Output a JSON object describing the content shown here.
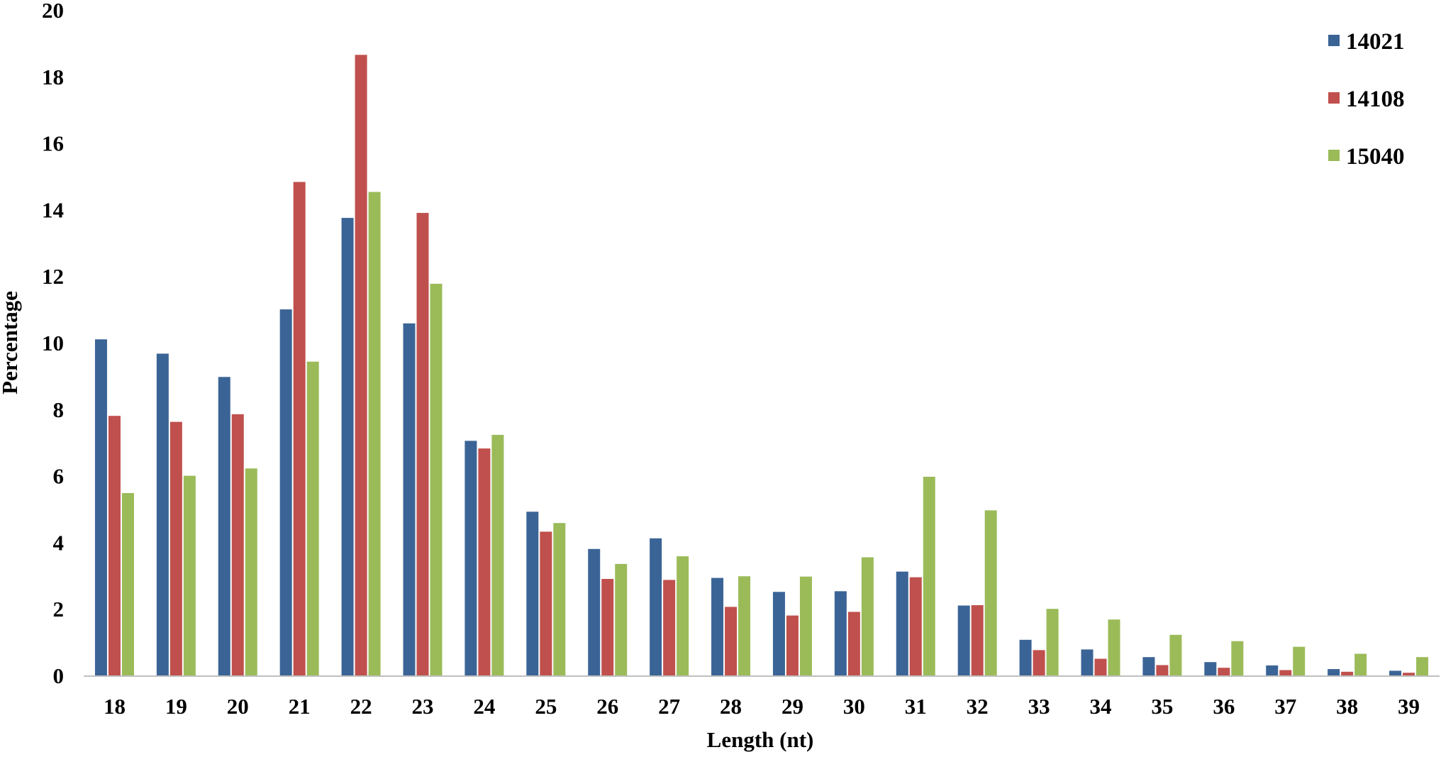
{
  "chart_data": {
    "type": "bar",
    "title": "",
    "xlabel": "Length (nt)",
    "ylabel": "Percentage",
    "ylim": [
      0,
      20
    ],
    "yticks": [
      "0",
      "2",
      "4",
      "6",
      "8",
      "10",
      "12",
      "14",
      "16",
      "18",
      "20"
    ],
    "categories": [
      "18",
      "19",
      "20",
      "21",
      "22",
      "23",
      "24",
      "25",
      "26",
      "27",
      "28",
      "29",
      "30",
      "31",
      "32",
      "33",
      "34",
      "35",
      "36",
      "37",
      "38",
      "39"
    ],
    "series": [
      {
        "name": "14021",
        "color": "#3b6496",
        "values": [
          10.1,
          9.67,
          8.97,
          11.0,
          13.75,
          10.58,
          7.05,
          4.92,
          3.8,
          4.12,
          2.93,
          2.51,
          2.53,
          3.12,
          2.1,
          1.07,
          0.78,
          0.55,
          0.4,
          0.3,
          0.19,
          0.14
        ]
      },
      {
        "name": "14108",
        "color": "#c0504d",
        "values": [
          7.8,
          7.62,
          7.85,
          14.83,
          18.65,
          13.9,
          6.82,
          4.32,
          2.9,
          2.87,
          2.06,
          1.8,
          1.91,
          2.95,
          2.11,
          0.76,
          0.5,
          0.31,
          0.23,
          0.16,
          0.11,
          0.08
        ]
      },
      {
        "name": "15040",
        "color": "#9bbb59",
        "values": [
          5.48,
          6.0,
          6.22,
          9.43,
          14.53,
          11.77,
          7.23,
          4.58,
          3.35,
          3.58,
          2.98,
          2.97,
          3.55,
          5.97,
          4.96,
          2.0,
          1.68,
          1.22,
          1.03,
          0.86,
          0.65,
          0.55
        ]
      }
    ],
    "grid": false,
    "legend": "top-right"
  }
}
